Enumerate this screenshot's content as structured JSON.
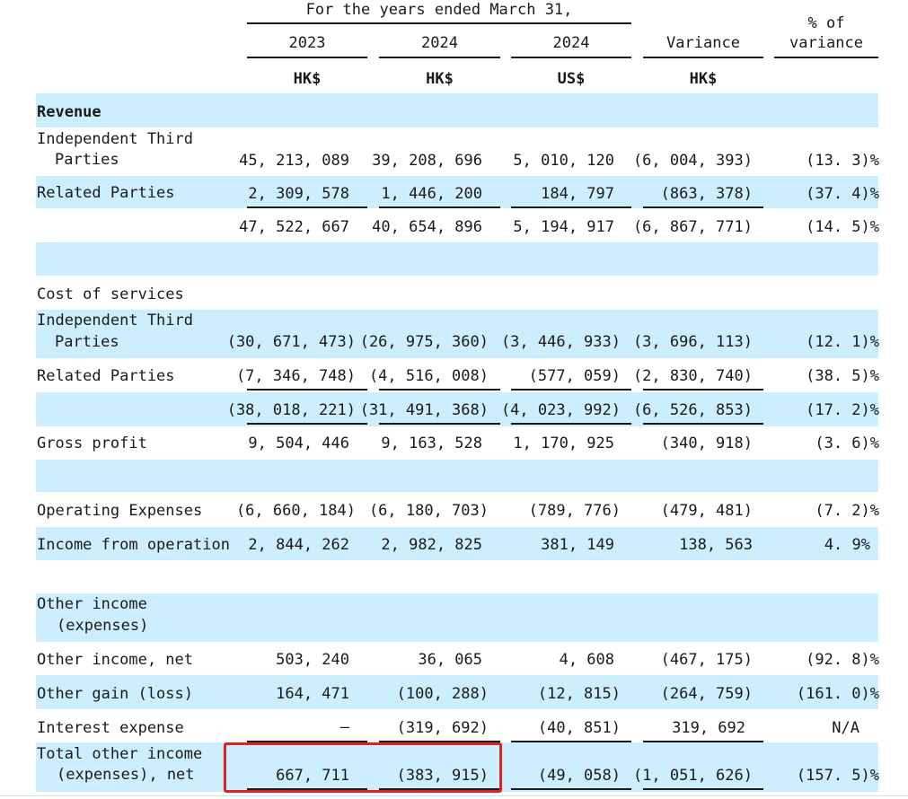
{
  "header": {
    "period": "For the  years ended March  31,",
    "col1_year": "2023",
    "col2_year": "2024",
    "col3_year": "2024",
    "variance": "Variance",
    "pct_line1": "% of",
    "pct_line2": "variance",
    "col1_cur": "HK$",
    "col2_cur": "HK$",
    "col3_cur": "US$",
    "col4_cur": "HK$"
  },
  "rows": {
    "revenue": {
      "label": "Revenue"
    },
    "rev_ind": {
      "label1": "Independent Third",
      "label2": "Parties",
      "c1": "45, 213, 089",
      "c2": "39, 208, 696",
      "c3": "5, 010, 120",
      "c4": "(6, 004, 393)",
      "c5": "(13. 3)%"
    },
    "rev_rel": {
      "label": "Related Parties",
      "c1": "2, 309, 578",
      "c2": "1, 446, 200",
      "c3": "184, 797",
      "c4": "(863, 378)",
      "c5": "(37. 4)%"
    },
    "rev_total": {
      "c1": "47, 522, 667",
      "c2": "40, 654, 896",
      "c3": "5, 194, 917",
      "c4": "(6, 867, 771)",
      "c5": "(14. 5)%"
    },
    "cos": {
      "label": "Cost  of  services"
    },
    "cos_ind": {
      "label1": "Independent Third",
      "label2": "Parties",
      "c1": "(30, 671, 473)",
      "c2": "(26, 975, 360)",
      "c3": "(3, 446, 933)",
      "c4": "(3, 696, 113)",
      "c5": "(12. 1)%"
    },
    "cos_rel": {
      "label": "Related Parties",
      "c1": "(7, 346, 748)",
      "c2": "(4, 516, 008)",
      "c3": "(577, 059)",
      "c4": "(2, 830, 740)",
      "c5": "(38. 5)%"
    },
    "cos_total": {
      "c1": "(38, 018, 221)",
      "c2": "(31, 491, 368)",
      "c3": "(4, 023, 992)",
      "c4": "(6, 526, 853)",
      "c5": "(17. 2)%"
    },
    "gross": {
      "label": "Gross  profit",
      "c1": "9, 504, 446",
      "c2": "9, 163, 528",
      "c3": "1, 170, 925",
      "c4": "(340, 918)",
      "c5": "(3. 6)%"
    },
    "opex": {
      "label": "Operating Expenses",
      "c1": "(6, 660, 184)",
      "c2": "(6, 180, 703)",
      "c3": "(789, 776)",
      "c4": "(479, 481)",
      "c5": "(7. 2)%"
    },
    "income_op": {
      "label": "Income  from  operation",
      "c1": "2, 844, 262",
      "c2": "2, 982, 825",
      "c3": "381, 149",
      "c4": "138, 563",
      "c5": "4. 9%"
    },
    "other_hdr": {
      "label1": "Other  income",
      "label2": "(expenses)"
    },
    "other_net": {
      "label": "Other  income,  net",
      "c1": "503, 240",
      "c2": "36, 065",
      "c3": "4, 608",
      "c4": "(467, 175)",
      "c5": "(92. 8)%"
    },
    "other_gain": {
      "label": "Other  gain  (loss)",
      "c1": "164, 471",
      "c2": "(100, 288)",
      "c3": "(12, 815)",
      "c4": "(264, 759)",
      "c5": "(161. 0)%"
    },
    "interest": {
      "label": "Interest  expense",
      "c1": "—",
      "c2": "(319, 692)",
      "c3": "(40, 851)",
      "c4": "319, 692",
      "c5": "N/A"
    },
    "total_other": {
      "label1": "Total  other  income",
      "label2": "(expenses),  net",
      "c1": "667, 711",
      "c2": "(383, 915)",
      "c3": "(49, 058)",
      "c4": "(1, 051, 626)",
      "c5": "(157. 5)%"
    }
  }
}
